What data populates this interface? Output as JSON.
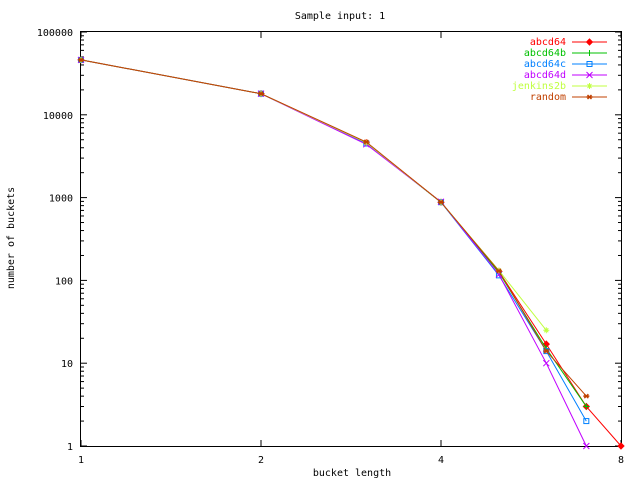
{
  "chart_data": {
    "type": "line",
    "title": "Sample input: 1",
    "xlabel": "bucket length",
    "ylabel": "number of buckets",
    "x_scale": "log2",
    "y_scale": "log10",
    "xlim": [
      1,
      8
    ],
    "ylim": [
      1,
      100000
    ],
    "x_ticks": [
      {
        "value": 1,
        "label": "1"
      },
      {
        "value": 2,
        "label": "2"
      },
      {
        "value": 4,
        "label": "4"
      },
      {
        "value": 8,
        "label": "8"
      }
    ],
    "y_ticks": [
      {
        "value": 1,
        "label": "1"
      },
      {
        "value": 10,
        "label": "10"
      },
      {
        "value": 100,
        "label": "100"
      },
      {
        "value": 1000,
        "label": "1000"
      },
      {
        "value": 10000,
        "label": "10000"
      },
      {
        "value": 100000,
        "label": "100000"
      }
    ],
    "grid": false,
    "legend": "top-right",
    "series": [
      {
        "name": "abcd64",
        "color": "#ff0000",
        "marker": "diamond",
        "x": [
          1,
          2,
          3,
          4,
          5,
          6,
          7,
          8
        ],
        "y": [
          46000,
          18000,
          4600,
          880,
          128,
          17,
          3,
          1
        ]
      },
      {
        "name": "abcd64b",
        "color": "#00c000",
        "marker": "plus",
        "x": [
          1,
          2,
          3,
          4,
          5,
          6,
          7
        ],
        "y": [
          46000,
          18000,
          4500,
          880,
          125,
          15,
          3
        ]
      },
      {
        "name": "abcd64c",
        "color": "#0080ff",
        "marker": "square",
        "x": [
          1,
          2,
          3,
          4,
          5,
          6,
          7
        ],
        "y": [
          46000,
          18000,
          4500,
          880,
          115,
          14,
          2
        ]
      },
      {
        "name": "abcd64d",
        "color": "#c000ff",
        "marker": "x",
        "x": [
          1,
          2,
          3,
          4,
          5,
          6,
          7
        ],
        "y": [
          46000,
          18000,
          4400,
          890,
          118,
          10,
          1
        ]
      },
      {
        "name": "jenkins2b",
        "color": "#c0ff40",
        "marker": "star",
        "x": [
          1,
          2,
          3,
          4,
          5,
          6
        ],
        "y": [
          46000,
          18000,
          4600,
          880,
          132,
          25
        ]
      },
      {
        "name": "random",
        "color": "#c04000",
        "marker": "asterisk",
        "x": [
          1,
          2,
          3,
          4,
          5,
          6,
          7
        ],
        "y": [
          46000,
          18000,
          4700,
          880,
          130,
          14,
          4
        ]
      }
    ]
  }
}
